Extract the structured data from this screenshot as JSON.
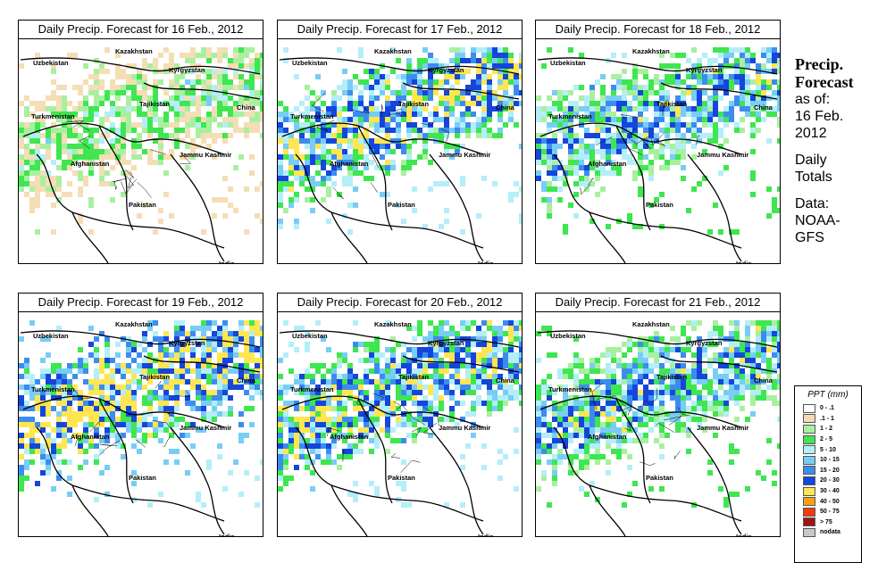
{
  "panels": [
    {
      "title": "Daily Precip. Forecast for  16 Feb., 2012",
      "intensity": 0
    },
    {
      "title": "Daily Precip. Forecast for  17 Feb., 2012",
      "intensity": 3
    },
    {
      "title": "Daily Precip. Forecast for  18 Feb., 2012",
      "intensity": 2
    },
    {
      "title": "Daily Precip. Forecast for  19 Feb., 2012",
      "intensity": 4
    },
    {
      "title": "Daily Precip. Forecast for  20 Feb., 2012",
      "intensity": 3
    },
    {
      "title": "Daily Precip. Forecast for  21 Feb., 2012",
      "intensity": 2
    }
  ],
  "map_labels": {
    "kazakhstan": "Kazakhstan",
    "uzbekistan": "Uzbekistan",
    "kyrgyzstan": "Kyrgyzstan",
    "tajikistan": "Tajikistan",
    "turkmenistan": "Turkmenistan",
    "china": "China",
    "afghanistan": "Afghanistan",
    "jammu": "Jammu Kashmir",
    "pakistan": "Pakistan",
    "india": "India"
  },
  "sidebar": {
    "heading1": "Precip.",
    "heading2": "Forecast",
    "asof": "as of:",
    "date1": "16 Feb.",
    "date2": "2012",
    "totals1": "Daily",
    "totals2": "Totals",
    "data1": "Data:",
    "data2": "NOAA-",
    "data3": "GFS"
  },
  "legend": {
    "title": "PPT (mm)",
    "entries": [
      {
        "label": "0 - .1",
        "color": "#ffffff"
      },
      {
        "label": ".1 - 1",
        "color": "#f5ddb5"
      },
      {
        "label": "1 - 2",
        "color": "#a8f0a0"
      },
      {
        "label": "2 - 5",
        "color": "#3ee650"
      },
      {
        "label": "5 - 10",
        "color": "#b4eef8"
      },
      {
        "label": "10 - 15",
        "color": "#78cdf5"
      },
      {
        "label": "15 - 20",
        "color": "#3c8cf0"
      },
      {
        "label": "20 - 30",
        "color": "#1446dc"
      },
      {
        "label": "30 - 40",
        "color": "#ffe650"
      },
      {
        "label": "40 - 50",
        "color": "#ffa014"
      },
      {
        "label": "50 - 75",
        "color": "#f03c0a"
      },
      {
        "label": "> 75",
        "color": "#a01414"
      },
      {
        "label": "nodata",
        "color": "#c8c8c8"
      }
    ]
  }
}
